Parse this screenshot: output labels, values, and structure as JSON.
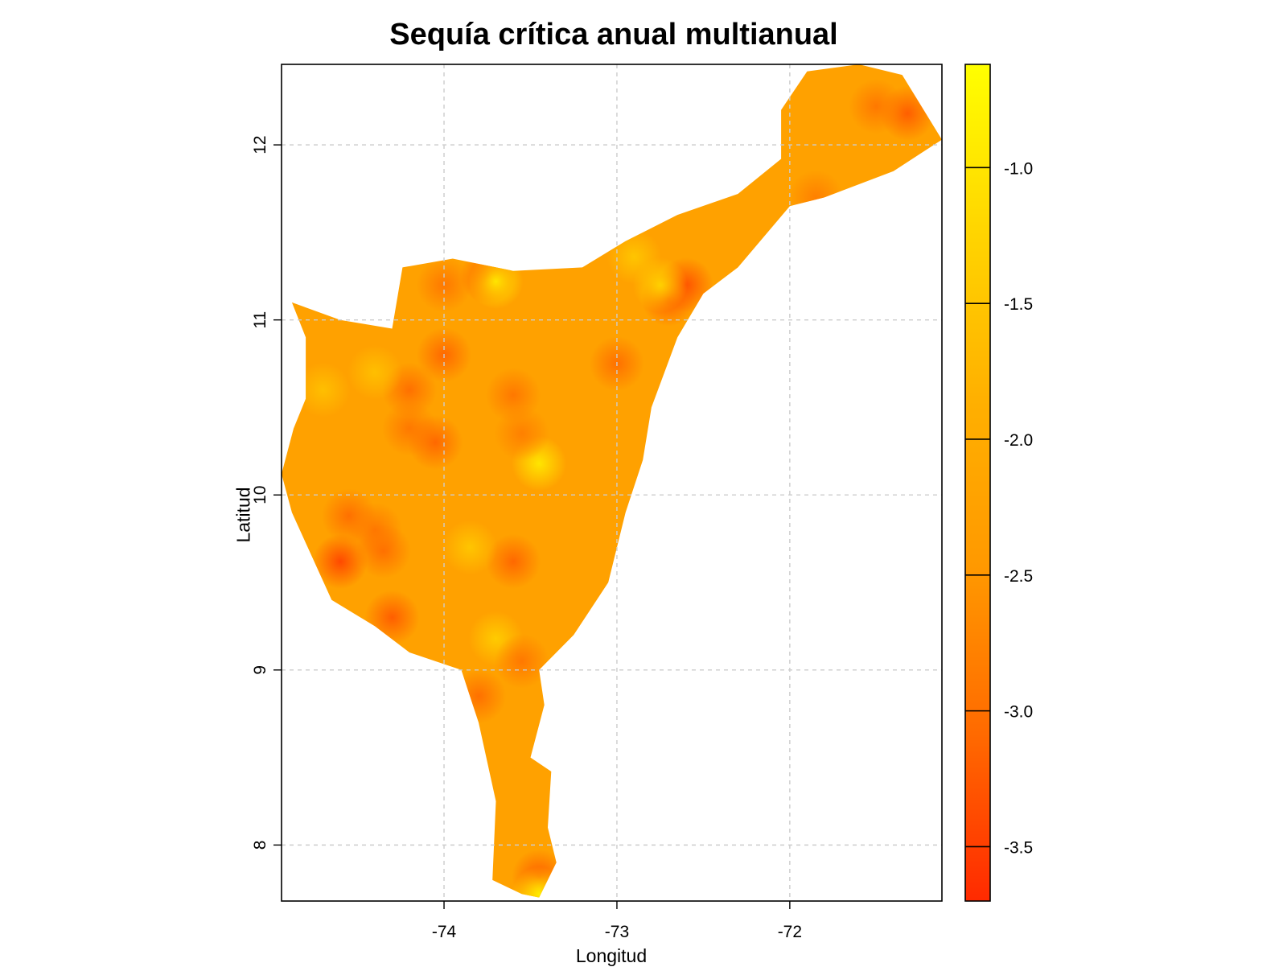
{
  "chart_data": {
    "type": "heatmap",
    "title": "Sequía crítica anual multianual",
    "xlabel": "Longitud",
    "ylabel": "Latitud",
    "xlim": [
      -74.94,
      -71.12
    ],
    "ylim": [
      7.68,
      12.46
    ],
    "x_ticks": [
      {
        "value": -74,
        "label": "-74"
      },
      {
        "value": -73,
        "label": "-73"
      },
      {
        "value": -72,
        "label": "-72"
      }
    ],
    "y_ticks": [
      {
        "value": 8,
        "label": "8"
      },
      {
        "value": 9,
        "label": "9"
      },
      {
        "value": 10,
        "label": "10"
      },
      {
        "value": 11,
        "label": "11"
      },
      {
        "value": 12,
        "label": "12"
      }
    ],
    "grid": true,
    "colorbar": {
      "range": [
        -3.7,
        -0.62
      ],
      "ticks": [
        {
          "value": -1.0,
          "label": "-1.0"
        },
        {
          "value": -1.5,
          "label": "-1.5"
        },
        {
          "value": -2.0,
          "label": "-2.0"
        },
        {
          "value": -2.5,
          "label": "-2.5"
        },
        {
          "value": -3.0,
          "label": "-3.0"
        },
        {
          "value": -3.5,
          "label": "-3.5"
        }
      ],
      "colors": [
        "#ff2a00",
        "#ff6a00",
        "#ff9900",
        "#ffb000",
        "#ffd500",
        "#ffff00"
      ]
    },
    "region_outline": [
      [
        -74.94,
        10.12
      ],
      [
        -74.87,
        10.38
      ],
      [
        -74.8,
        10.55
      ],
      [
        -74.8,
        10.9
      ],
      [
        -74.88,
        11.1
      ],
      [
        -74.6,
        11.0
      ],
      [
        -74.3,
        10.95
      ],
      [
        -74.24,
        11.3
      ],
      [
        -73.95,
        11.35
      ],
      [
        -73.6,
        11.28
      ],
      [
        -73.2,
        11.3
      ],
      [
        -72.95,
        11.45
      ],
      [
        -72.65,
        11.6
      ],
      [
        -72.3,
        11.72
      ],
      [
        -72.05,
        11.92
      ],
      [
        -72.05,
        12.2
      ],
      [
        -71.9,
        12.42
      ],
      [
        -71.6,
        12.46
      ],
      [
        -71.35,
        12.4
      ],
      [
        -71.12,
        12.03
      ],
      [
        -71.4,
        11.85
      ],
      [
        -71.8,
        11.7
      ],
      [
        -72.0,
        11.65
      ],
      [
        -72.3,
        11.3
      ],
      [
        -72.5,
        11.15
      ],
      [
        -72.65,
        10.9
      ],
      [
        -72.8,
        10.5
      ],
      [
        -72.85,
        10.2
      ],
      [
        -72.95,
        9.9
      ],
      [
        -73.05,
        9.5
      ],
      [
        -73.25,
        9.2
      ],
      [
        -73.45,
        9.0
      ],
      [
        -73.42,
        8.8
      ],
      [
        -73.5,
        8.5
      ],
      [
        -73.38,
        8.42
      ],
      [
        -73.4,
        8.1
      ],
      [
        -73.35,
        7.9
      ],
      [
        -73.45,
        7.7
      ],
      [
        -73.55,
        7.72
      ],
      [
        -73.72,
        7.8
      ],
      [
        -73.7,
        8.25
      ],
      [
        -73.8,
        8.7
      ],
      [
        -73.9,
        9.0
      ],
      [
        -74.2,
        9.1
      ],
      [
        -74.4,
        9.25
      ],
      [
        -74.65,
        9.4
      ],
      [
        -74.88,
        9.9
      ],
      [
        -74.94,
        10.12
      ]
    ],
    "points": [
      {
        "lon": -74.0,
        "lat": 11.2,
        "value": -2.9
      },
      {
        "lon": -73.75,
        "lat": 11.25,
        "value": -3.2
      },
      {
        "lon": -73.7,
        "lat": 11.22,
        "value": -1.0
      },
      {
        "lon": -74.0,
        "lat": 10.8,
        "value": -3.1
      },
      {
        "lon": -74.2,
        "lat": 10.6,
        "value": -3.0
      },
      {
        "lon": -74.2,
        "lat": 10.38,
        "value": -2.9
      },
      {
        "lon": -74.05,
        "lat": 10.3,
        "value": -3.1
      },
      {
        "lon": -73.6,
        "lat": 10.57,
        "value": -2.9
      },
      {
        "lon": -73.45,
        "lat": 10.18,
        "value": -1.0
      },
      {
        "lon": -73.55,
        "lat": 10.35,
        "value": -2.8
      },
      {
        "lon": -73.0,
        "lat": 10.75,
        "value": -3.0
      },
      {
        "lon": -72.6,
        "lat": 11.2,
        "value": -3.3
      },
      {
        "lon": -72.7,
        "lat": 11.12,
        "value": -3.2
      },
      {
        "lon": -72.75,
        "lat": 11.2,
        "value": -1.3
      },
      {
        "lon": -74.6,
        "lat": 9.62,
        "value": -3.4
      },
      {
        "lon": -74.55,
        "lat": 9.88,
        "value": -3.0
      },
      {
        "lon": -74.4,
        "lat": 9.8,
        "value": -2.9
      },
      {
        "lon": -74.35,
        "lat": 9.68,
        "value": -3.0
      },
      {
        "lon": -74.3,
        "lat": 9.3,
        "value": -3.2
      },
      {
        "lon": -73.6,
        "lat": 9.62,
        "value": -3.1
      },
      {
        "lon": -73.7,
        "lat": 9.18,
        "value": -1.4
      },
      {
        "lon": -73.55,
        "lat": 9.05,
        "value": -2.9
      },
      {
        "lon": -73.8,
        "lat": 8.85,
        "value": -3.0
      },
      {
        "lon": -73.45,
        "lat": 7.82,
        "value": -3.2
      },
      {
        "lon": -73.45,
        "lat": 7.72,
        "value": -0.9
      },
      {
        "lon": -71.32,
        "lat": 12.18,
        "value": -3.2
      },
      {
        "lon": -71.5,
        "lat": 12.22,
        "value": -2.9
      },
      {
        "lon": -71.85,
        "lat": 11.7,
        "value": -2.8
      },
      {
        "lon": -72.9,
        "lat": 11.36,
        "value": -1.5
      },
      {
        "lon": -74.7,
        "lat": 10.6,
        "value": -1.6
      },
      {
        "lon": -73.85,
        "lat": 9.7,
        "value": -1.5
      },
      {
        "lon": -74.4,
        "lat": 10.7,
        "value": -1.6
      }
    ],
    "background_value": -2.25
  }
}
